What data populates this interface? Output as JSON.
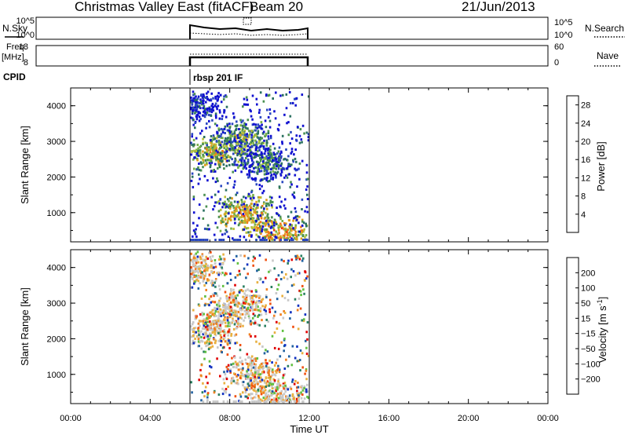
{
  "header": {
    "station": "Christmas Valley East (fitACF)",
    "beam": "Beam 20",
    "date": "21/Jun/2013"
  },
  "panels": {
    "nsky_label": "N.Sky",
    "nsky_ticks": [
      "10^5",
      "10^0"
    ],
    "nsearch_label": "N.Search",
    "nsearch_ticks": [
      "10^5",
      "10^0"
    ],
    "freq_label": "Freq.",
    "freq_unit": "[MHz]",
    "freq_ticks": [
      "18",
      "8"
    ],
    "nave_label": "Nave",
    "nave_ticks": [
      "60",
      "0"
    ],
    "cpid_label": "CPID",
    "cpid_value": "rbsp 201 IF"
  },
  "chart_data": [
    {
      "type": "heatmap",
      "title": "",
      "xlabel": "",
      "ylabel": "Slant Range [km]",
      "xlim": [
        "00:00",
        "24:00"
      ],
      "ylim": [
        180,
        4500
      ],
      "yticks": [
        "1000",
        "2000",
        "3000",
        "4000"
      ],
      "colorbar": {
        "label": "Power [dB]",
        "ticks": [
          "4",
          "8",
          "12",
          "16",
          "20",
          "24",
          "28"
        ],
        "range": [
          0,
          30
        ],
        "colors": [
          "#1010d0",
          "#2a48c0",
          "#2a7060",
          "#4a9050",
          "#78b048",
          "#b8c038",
          "#e0a020",
          "#f07818",
          "#f04010",
          "#e00000"
        ]
      },
      "data_window_hours": [
        6.0,
        12.0
      ],
      "echo_regions": [
        {
          "hour": 7.2,
          "range_km": 2700,
          "value": 18
        },
        {
          "hour": 8.6,
          "range_km": 3100,
          "value": 14
        },
        {
          "hour": 9.8,
          "range_km": 2400,
          "value": 10
        },
        {
          "hour": 8.8,
          "range_km": 1000,
          "value": 20
        },
        {
          "hour": 10.4,
          "range_km": 400,
          "value": 22
        },
        {
          "hour": 6.2,
          "range_km": 4000,
          "value": 6
        }
      ]
    },
    {
      "type": "heatmap",
      "title": "",
      "xlabel": "Time UT",
      "ylabel": "Slant Range [km]",
      "xlim": [
        "00:00",
        "24:00"
      ],
      "ylim": [
        180,
        4500
      ],
      "yticks": [
        "1000",
        "2000",
        "3000",
        "4000"
      ],
      "xticks": [
        "00:00",
        "04:00",
        "08:00",
        "12:00",
        "16:00",
        "20:00",
        "00:00"
      ],
      "colorbar": {
        "label": "Velocity [m s^-1]",
        "ticks": [
          "200",
          "100",
          "50",
          "15",
          "−15",
          "−50",
          "−100",
          "−200"
        ],
        "colors": [
          "#1030c0",
          "#2060a0",
          "#2a8060",
          "#60c040",
          "#c8c8c8",
          "#e8b040",
          "#f08020",
          "#f05010",
          "#e00000"
        ]
      },
      "data_window_hours": [
        6.0,
        12.0
      ],
      "echo_regions": [
        {
          "hour": 7.0,
          "range_km": 2300,
          "value": -30
        },
        {
          "hour": 8.4,
          "range_km": 2900,
          "value": -60
        },
        {
          "hour": 9.2,
          "range_km": 1000,
          "value": 0
        },
        {
          "hour": 10.6,
          "range_km": 350,
          "value": 40
        },
        {
          "hour": 6.3,
          "range_km": 4000,
          "value": 5
        }
      ]
    }
  ]
}
